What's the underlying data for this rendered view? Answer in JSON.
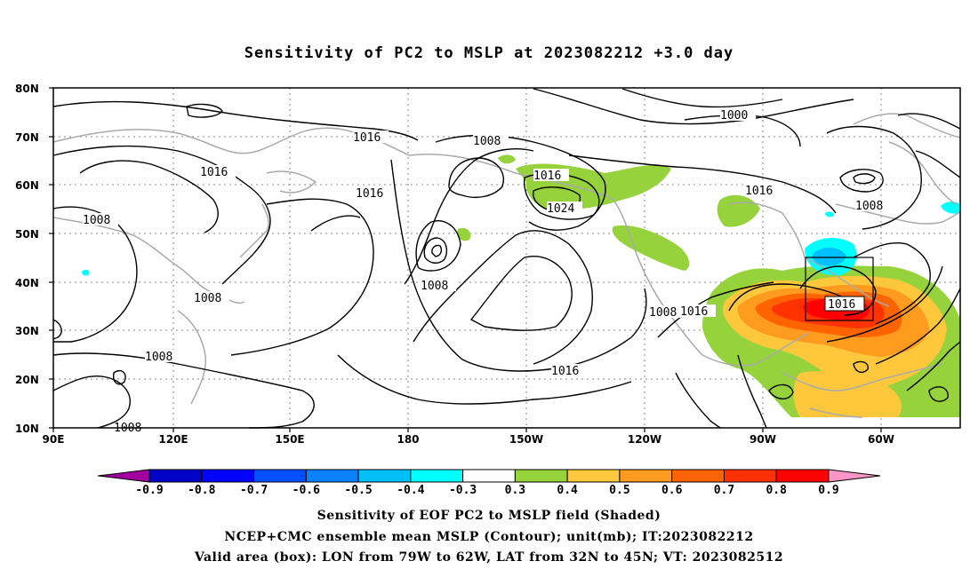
{
  "title": "Sensitivity of PC2 to MSLP at 2023082212 +3.0 day",
  "lat_labels": [
    "80N",
    "70N",
    "60N",
    "50N",
    "40N",
    "30N",
    "20N",
    "10N"
  ],
  "lon_labels": [
    "90E",
    "120E",
    "150E",
    "180",
    "150W",
    "120W",
    "90W",
    "60W"
  ],
  "contour_labels": [
    "1016",
    "1008",
    "1016",
    "1016",
    "1008",
    "1016",
    "1024",
    "1000",
    "1016",
    "1008",
    "1008",
    "1008",
    "1008",
    "1016",
    "1016",
    "1008",
    "1016",
    "1008"
  ],
  "colorbar": {
    "labels": [
      "-0.9",
      "-0.8",
      "-0.7",
      "-0.6",
      "-0.5",
      "-0.4",
      "-0.3",
      "0.3",
      "0.4",
      "0.5",
      "0.6",
      "0.7",
      "0.8",
      "0.9"
    ],
    "colors": [
      "#a000a0",
      "#0000c8",
      "#0000ff",
      "#0050ff",
      "#0a82ff",
      "#00c0ff",
      "#00ffff",
      "#ffffff",
      "#96d23c",
      "#ffc83c",
      "#ff9b1e",
      "#ff6400",
      "#ff3200",
      "#ff0000",
      "#ff96c8"
    ]
  },
  "valid_box": "1016",
  "captions": [
    "Sensitivity of EOF PC2 to MSLP field (Shaded)",
    "NCEP+CMC ensemble mean MSLP (Contour); unit(mb); IT:2023082212",
    "Valid area (box): LON from 79W to 62W, LAT from 32N to 45N; VT: 2023082512"
  ]
}
